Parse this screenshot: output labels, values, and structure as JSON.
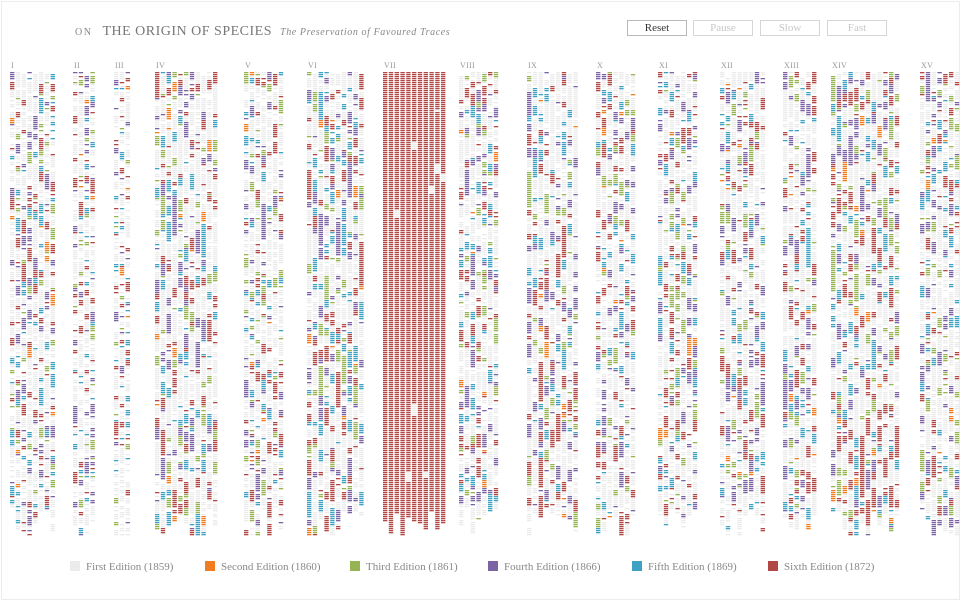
{
  "header": {
    "prefix": "on",
    "title": "THE ORIGIN OF SPECIES",
    "subtitle": "The Preservation of Favoured Traces"
  },
  "controls": [
    {
      "label": "Reset",
      "enabled": true
    },
    {
      "label": "Pause",
      "enabled": false
    },
    {
      "label": "Slow",
      "enabled": false
    },
    {
      "label": "Fast",
      "enabled": false
    }
  ],
  "colors": {
    "first": "#ebebeb",
    "second": "#f07e21",
    "third": "#97b452",
    "fourth": "#7c64a4",
    "fifth": "#3fa2c2",
    "sixth": "#b24846"
  },
  "legend": [
    {
      "label": "First Edition (1859)",
      "color": "#ebebeb"
    },
    {
      "label": "Second Edition (1860)",
      "color": "#f07e21"
    },
    {
      "label": "Third Edition (1861)",
      "color": "#97b452"
    },
    {
      "label": "Fourth Edition (1866)",
      "color": "#7c64a4"
    },
    {
      "label": "Fifth Edition (1869)",
      "color": "#3fa2c2"
    },
    {
      "label": "Sixth Edition (1872)",
      "color": "#b24846"
    }
  ],
  "chapters": [
    {
      "label": "I",
      "columns": 8,
      "density": 0.75
    },
    {
      "label": "II",
      "columns": 4,
      "density": 0.65
    },
    {
      "label": "III",
      "columns": 3,
      "density": 0.6
    },
    {
      "label": "IV",
      "columns": 11,
      "density": 0.85
    },
    {
      "label": "V",
      "columns": 7,
      "density": 0.75
    },
    {
      "label": "VI",
      "columns": 10,
      "density": 0.85
    },
    {
      "label": "VII",
      "columns": 11,
      "density": 1.0
    },
    {
      "label": "VIII",
      "columns": 7,
      "density": 0.8
    },
    {
      "label": "IX",
      "columns": 9,
      "density": 0.85
    },
    {
      "label": "X",
      "columns": 7,
      "density": 0.8
    },
    {
      "label": "XI",
      "columns": 7,
      "density": 0.8
    },
    {
      "label": "XII",
      "columns": 8,
      "density": 0.8
    },
    {
      "label": "XIII",
      "columns": 6,
      "density": 0.8
    },
    {
      "label": "XIV",
      "columns": 12,
      "density": 0.85
    },
    {
      "label": "XV",
      "columns": 7,
      "density": 0.8
    }
  ]
}
